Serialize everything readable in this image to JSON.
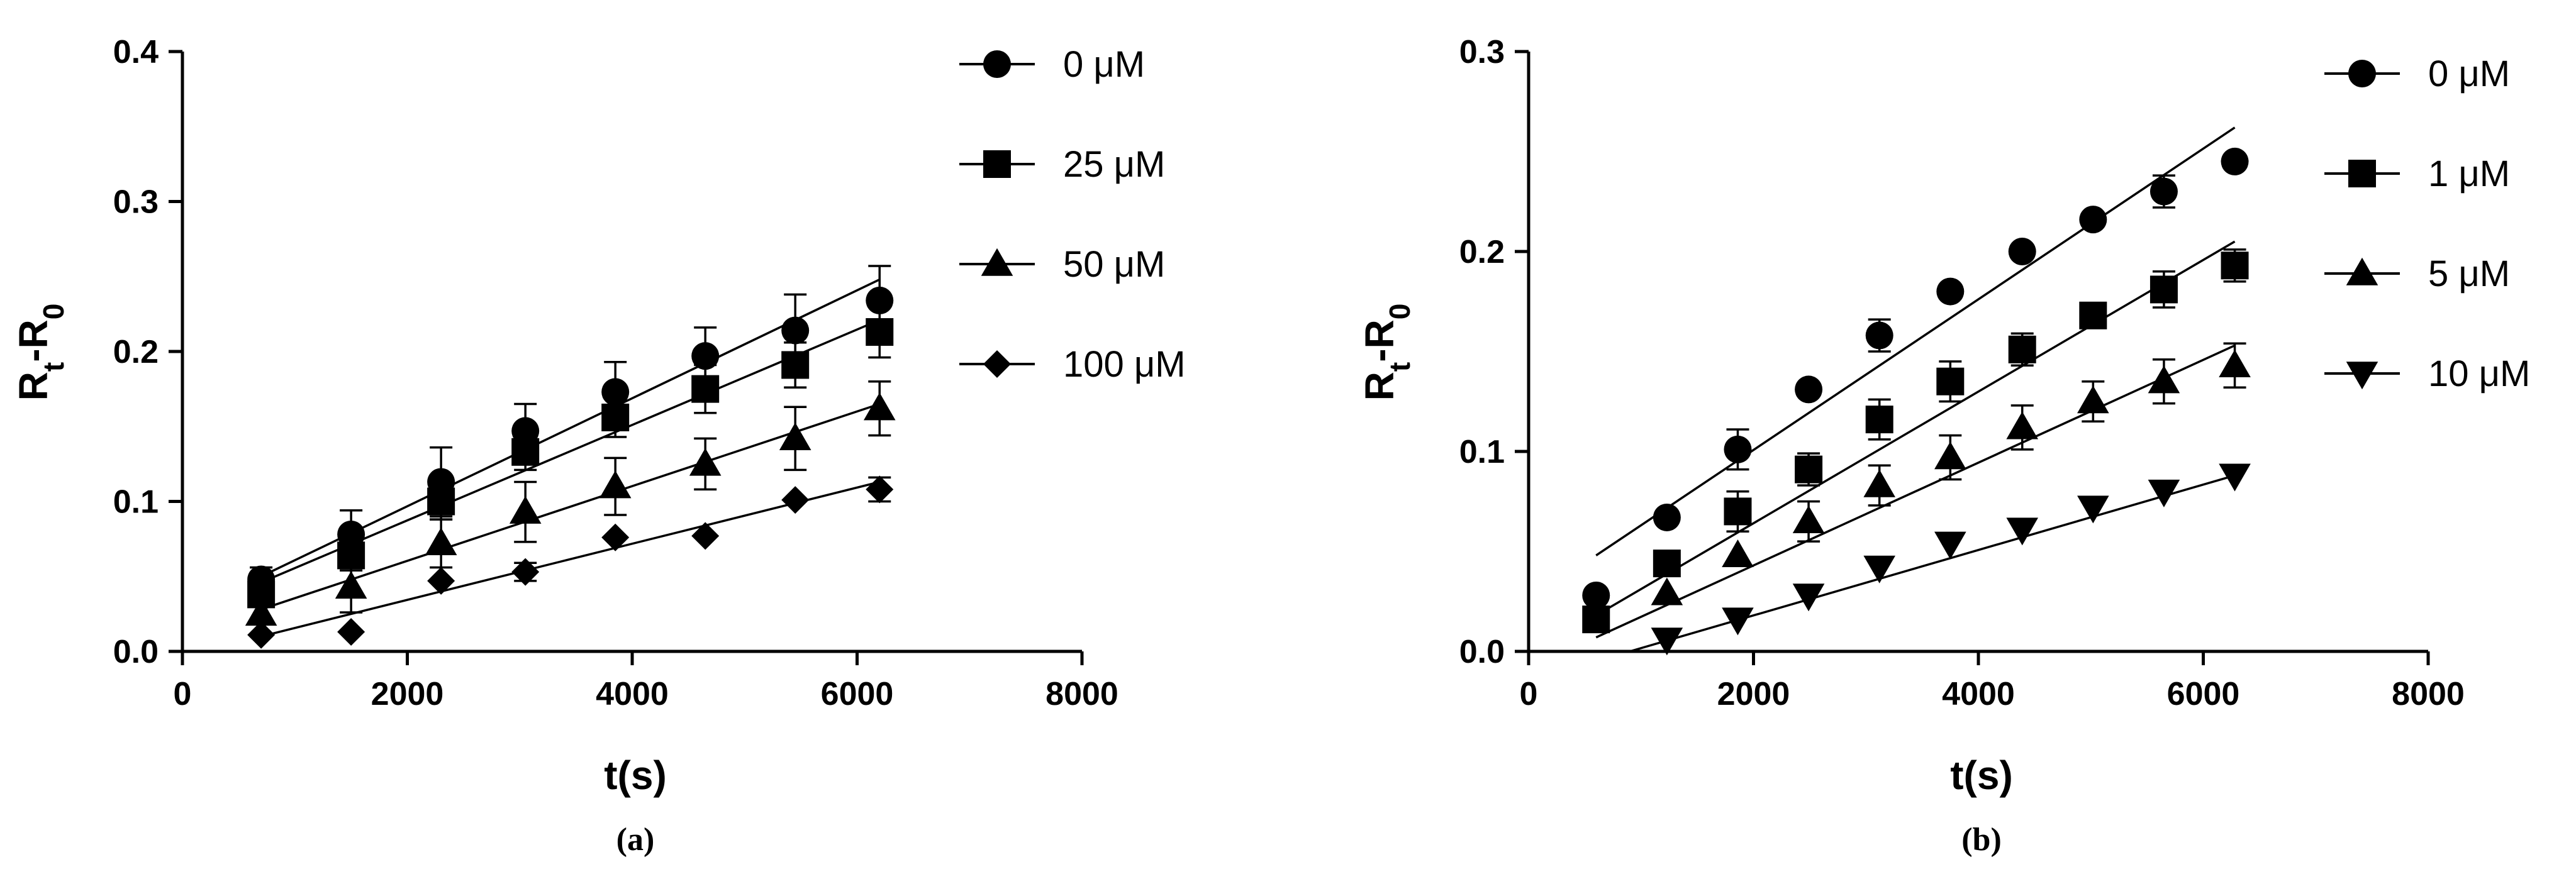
{
  "chart_data": [
    {
      "type": "scatter",
      "panel_label": "(a)",
      "xlabel": "t(s)",
      "ylabel_main": "R",
      "ylabel_sub1": "t",
      "ylabel_mid": "-R",
      "ylabel_sub2": "0",
      "xlim": [
        0,
        8000
      ],
      "ylim": [
        0,
        0.4
      ],
      "x_ticks": [
        0,
        2000,
        4000,
        6000,
        8000
      ],
      "x_tick_labels": [
        "0",
        "2000",
        "4000",
        "6000",
        "8000"
      ],
      "y_ticks": [
        0,
        0.1,
        0.2,
        0.3,
        0.4
      ],
      "y_tick_labels": [
        "0.0",
        "0.1",
        "0.2",
        "0.3",
        "0.4"
      ],
      "legend_position": "top-right, outside plot",
      "fit_lines": true,
      "series": [
        {
          "name": "0 μM",
          "marker": "circle",
          "x": [
            700,
            1500,
            2300,
            3050,
            3850,
            4650,
            5450,
            6200
          ],
          "y": [
            0.048,
            0.078,
            0.113,
            0.147,
            0.173,
            0.197,
            0.214,
            0.234
          ],
          "err": [
            0.008,
            0.016,
            0.023,
            0.018,
            0.02,
            0.019,
            0.024,
            0.023
          ],
          "fit": [
            [
              700,
              0.05
            ],
            [
              6200,
              0.248
            ]
          ]
        },
        {
          "name": "25 μM",
          "marker": "square",
          "x": [
            700,
            1500,
            2300,
            3050,
            3850,
            4650,
            5450,
            6200
          ],
          "y": [
            0.038,
            0.064,
            0.1,
            0.133,
            0.156,
            0.175,
            0.191,
            0.213
          ],
          "err": [
            0.008,
            0.01,
            0.012,
            0.012,
            0.013,
            0.016,
            0.015,
            0.017
          ],
          "fit": [
            [
              700,
              0.046
            ],
            [
              6200,
              0.221
            ]
          ]
        },
        {
          "name": "50 μM",
          "marker": "triangle",
          "x": [
            700,
            1500,
            2300,
            3050,
            3850,
            4650,
            5450,
            6200
          ],
          "y": [
            0.025,
            0.043,
            0.072,
            0.093,
            0.11,
            0.125,
            0.142,
            0.162
          ],
          "err": [
            0.006,
            0.017,
            0.016,
            0.02,
            0.019,
            0.017,
            0.021,
            0.018
          ],
          "fit": [
            [
              700,
              0.028
            ],
            [
              6200,
              0.165
            ]
          ]
        },
        {
          "name": "100 μM",
          "marker": "diamond",
          "x": [
            700,
            1500,
            2300,
            3050,
            3850,
            4650,
            5450,
            6200
          ],
          "y": [
            0.011,
            0.013,
            0.047,
            0.053,
            0.076,
            0.077,
            0.101,
            0.108
          ],
          "err": [
            0.0,
            0.0,
            0.0,
            0.006,
            0.0,
            0.0,
            0.0,
            0.008
          ],
          "fit": [
            [
              700,
              0.01
            ],
            [
              6200,
              0.113
            ]
          ]
        }
      ]
    },
    {
      "type": "scatter",
      "panel_label": "(b)",
      "xlabel": "t(s)",
      "ylabel_main": "R",
      "ylabel_sub1": "t",
      "ylabel_mid": "-R",
      "ylabel_sub2": "0",
      "xlim": [
        0,
        8000
      ],
      "ylim": [
        0,
        0.3
      ],
      "x_ticks": [
        0,
        2000,
        4000,
        6000,
        8000
      ],
      "x_tick_labels": [
        "0",
        "2000",
        "4000",
        "6000",
        "8000"
      ],
      "y_ticks": [
        0,
        0.1,
        0.2,
        0.3
      ],
      "y_tick_labels": [
        "0.0",
        "0.1",
        "0.2",
        "0.3"
      ],
      "legend_position": "top-right, outside plot",
      "fit_lines": true,
      "series": [
        {
          "name": "0 μM",
          "marker": "circle",
          "x": [
            600,
            1230,
            1860,
            2490,
            3120,
            3750,
            4390,
            5020,
            5650,
            6280
          ],
          "y": [
            0.028,
            0.067,
            0.101,
            0.131,
            0.158,
            0.18,
            0.2,
            0.216,
            0.23,
            0.245
          ],
          "err": [
            0.0,
            0.0,
            0.01,
            0.0,
            0.008,
            0.0,
            0.0,
            0.0,
            0.008,
            0.0
          ],
          "fit": [
            [
              600,
              0.048
            ],
            [
              6280,
              0.262
            ]
          ]
        },
        {
          "name": "1 μM",
          "marker": "square",
          "x": [
            600,
            1230,
            1860,
            2490,
            3120,
            3750,
            4390,
            5020,
            5650,
            6280
          ],
          "y": [
            0.016,
            0.044,
            0.07,
            0.091,
            0.116,
            0.135,
            0.151,
            0.168,
            0.181,
            0.193
          ],
          "err": [
            0.0,
            0.0,
            0.01,
            0.008,
            0.01,
            0.01,
            0.008,
            0.0,
            0.009,
            0.008
          ],
          "fit": [
            [
              600,
              0.018
            ],
            [
              6280,
              0.205
            ]
          ]
        },
        {
          "name": "5 μM",
          "marker": "triangle",
          "x": [
            1230,
            1860,
            2490,
            3120,
            3750,
            4390,
            5020,
            5650,
            6280
          ],
          "y": [
            0.029,
            0.048,
            0.065,
            0.083,
            0.097,
            0.112,
            0.125,
            0.135,
            0.143
          ],
          "err": [
            0.0,
            0.0,
            0.01,
            0.01,
            0.011,
            0.011,
            0.01,
            0.011,
            0.011
          ],
          "fit": [
            [
              600,
              0.007
            ],
            [
              6280,
              0.153
            ]
          ]
        },
        {
          "name": "10 μM",
          "marker": "triangle-down",
          "x": [
            1230,
            1860,
            2490,
            3120,
            3750,
            4390,
            5020,
            5650,
            6280
          ],
          "y": [
            0.006,
            0.016,
            0.028,
            0.042,
            0.054,
            0.061,
            0.072,
            0.08,
            0.088
          ],
          "err": [
            0,
            0,
            0,
            0,
            0,
            0,
            0,
            0,
            0
          ],
          "fit": [
            [
              900,
              0.0
            ],
            [
              6280,
              0.088
            ]
          ]
        }
      ]
    }
  ]
}
